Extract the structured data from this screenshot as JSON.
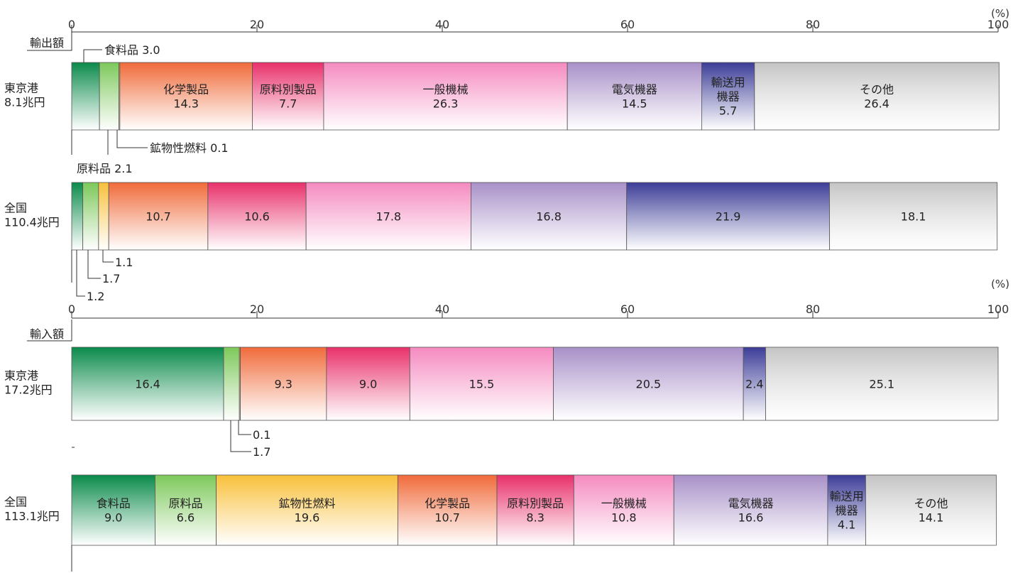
{
  "colors": {
    "food": "#0a8a4a",
    "raw": "#7cc85a",
    "fuel": "#f8c03a",
    "chem": "#f06a3a",
    "mat": "#e8306a",
    "mach": "#f58ac0",
    "elec": "#a890c8",
    "trans": "#3c3c98",
    "other": "#c4c4c4"
  },
  "chart_data": [
    {
      "type": "bar",
      "section_label": "輸出額",
      "unit": "(%)",
      "xlim": [
        0,
        100
      ],
      "xticks": [
        "0",
        "20",
        "40",
        "60",
        "80",
        "100"
      ],
      "rows": [
        {
          "label_line1": "東京港",
          "label_line2": "8.1兆円",
          "segments": [
            {
              "key": "food",
              "value": 3.0,
              "text": ""
            },
            {
              "key": "raw",
              "value": 2.1,
              "text": ""
            },
            {
              "key": "fuel",
              "value": 0.1,
              "text": ""
            },
            {
              "key": "chem",
              "value": 14.3,
              "text": "化学製品\n14.3"
            },
            {
              "key": "mat",
              "value": 7.7,
              "text": "原料別製品\n7.7"
            },
            {
              "key": "mach",
              "value": 26.3,
              "text": "一般機械\n26.3"
            },
            {
              "key": "elec",
              "value": 14.5,
              "text": "電気機器\n14.5"
            },
            {
              "key": "trans",
              "value": 5.7,
              "text": "輸送用\n機器\n5.7"
            },
            {
              "key": "other",
              "value": 26.4,
              "text": "その他\n26.4"
            }
          ],
          "callouts": [
            "食料品 3.0",
            "鉱物性燃料 0.1",
            "原料品 2.1"
          ]
        },
        {
          "label_line1": "全国",
          "label_line2": "110.4兆円",
          "segments": [
            {
              "key": "food",
              "value": 1.2,
              "text": ""
            },
            {
              "key": "raw",
              "value": 1.7,
              "text": ""
            },
            {
              "key": "fuel",
              "value": 1.1,
              "text": ""
            },
            {
              "key": "chem",
              "value": 10.7,
              "text": "10.7"
            },
            {
              "key": "mat",
              "value": 10.6,
              "text": "10.6"
            },
            {
              "key": "mach",
              "value": 17.8,
              "text": "17.8"
            },
            {
              "key": "elec",
              "value": 16.8,
              "text": "16.8"
            },
            {
              "key": "trans",
              "value": 21.9,
              "text": "21.9"
            },
            {
              "key": "other",
              "value": 18.1,
              "text": "18.1"
            }
          ],
          "callouts": [
            "1.1",
            "1.7",
            "1.2"
          ]
        }
      ]
    },
    {
      "type": "bar",
      "section_label": "輸入額",
      "unit": "(%)",
      "xlim": [
        0,
        100
      ],
      "xticks": [
        "0",
        "20",
        "40",
        "60",
        "80",
        "100"
      ],
      "rows": [
        {
          "label_line1": "東京港",
          "label_line2": "17.2兆円",
          "segments": [
            {
              "key": "food",
              "value": 16.4,
              "text": "16.4"
            },
            {
              "key": "raw",
              "value": 1.7,
              "text": ""
            },
            {
              "key": "fuel",
              "value": 0.1,
              "text": ""
            },
            {
              "key": "chem",
              "value": 9.3,
              "text": "9.3"
            },
            {
              "key": "mat",
              "value": 9.0,
              "text": "9.0"
            },
            {
              "key": "mach",
              "value": 15.5,
              "text": "15.5"
            },
            {
              "key": "elec",
              "value": 20.5,
              "text": "20.5"
            },
            {
              "key": "trans",
              "value": 2.4,
              "text": "2.4"
            },
            {
              "key": "other",
              "value": 25.1,
              "text": "25.1"
            }
          ],
          "callouts": [
            "0.1",
            "1.7"
          ]
        },
        {
          "label_line1": "全国",
          "label_line2": "113.1兆円",
          "segments": [
            {
              "key": "food",
              "value": 9.0,
              "text": "食料品\n9.0"
            },
            {
              "key": "raw",
              "value": 6.6,
              "text": "原料品\n6.6"
            },
            {
              "key": "fuel",
              "value": 19.6,
              "text": "鉱物性燃料\n19.6"
            },
            {
              "key": "chem",
              "value": 10.7,
              "text": "化学製品\n10.7"
            },
            {
              "key": "mat",
              "value": 8.3,
              "text": "原料別製品\n8.3"
            },
            {
              "key": "mach",
              "value": 10.8,
              "text": "一般機械\n10.8"
            },
            {
              "key": "elec",
              "value": 16.6,
              "text": "電気機器\n16.6"
            },
            {
              "key": "trans",
              "value": 4.1,
              "text": "輸送用\n機器\n4.1"
            },
            {
              "key": "other",
              "value": 14.1,
              "text": "その他\n14.1"
            }
          ],
          "callouts": []
        }
      ]
    }
  ]
}
